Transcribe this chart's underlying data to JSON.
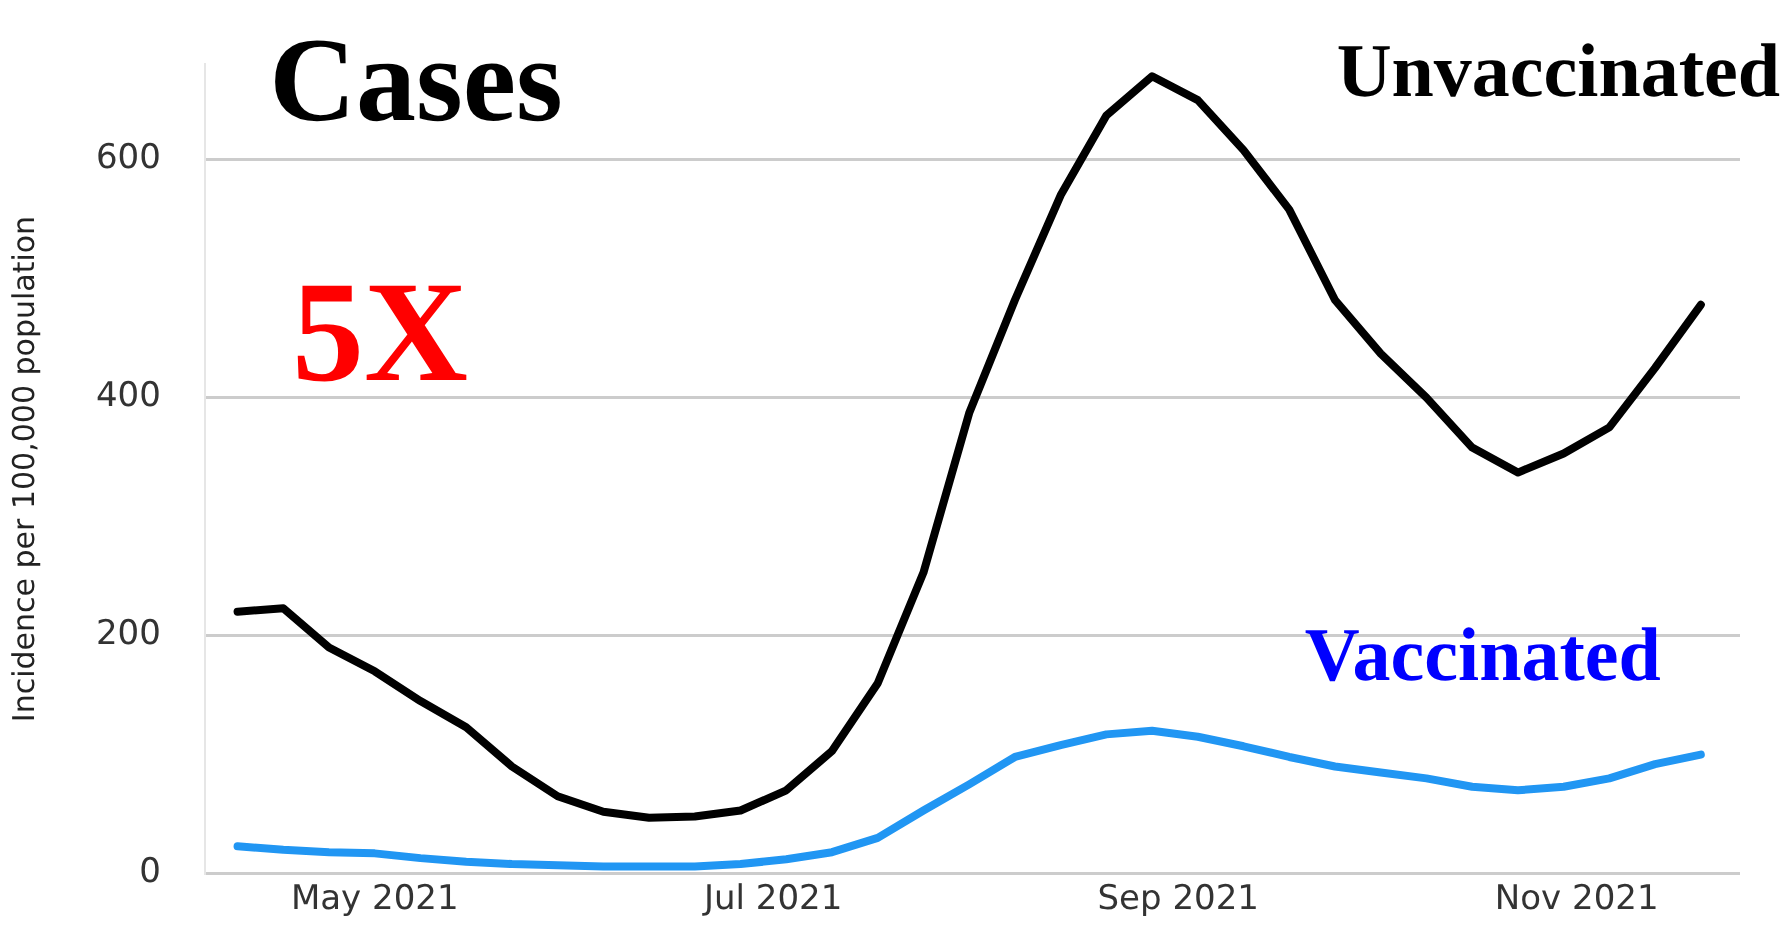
{
  "chart_data": {
    "type": "line",
    "title": "Cases",
    "ylabel": "Incidence per 100,000 population",
    "x": [
      "2021-04-10",
      "2021-04-17",
      "2021-04-24",
      "2021-05-01",
      "2021-05-08",
      "2021-05-15",
      "2021-05-22",
      "2021-05-29",
      "2021-06-05",
      "2021-06-12",
      "2021-06-19",
      "2021-06-26",
      "2021-07-03",
      "2021-07-10",
      "2021-07-17",
      "2021-07-24",
      "2021-07-31",
      "2021-08-07",
      "2021-08-14",
      "2021-08-21",
      "2021-08-28",
      "2021-09-04",
      "2021-09-11",
      "2021-09-18",
      "2021-09-25",
      "2021-10-02",
      "2021-10-09",
      "2021-10-16",
      "2021-10-23",
      "2021-10-30",
      "2021-11-06",
      "2021-11-13",
      "2021-11-20"
    ],
    "series": [
      {
        "name": "Unvaccinated",
        "color": "#000000",
        "values": [
          220,
          223,
          190,
          170,
          145,
          123,
          90,
          65,
          52,
          47,
          48,
          53,
          70,
          103,
          160,
          253,
          387,
          482,
          570,
          637,
          670,
          650,
          608,
          558,
          482,
          437,
          400,
          358,
          337,
          353,
          375,
          425,
          478
        ]
      },
      {
        "name": "Vaccinated",
        "color": "#2196f3",
        "values": [
          23,
          20,
          18,
          17,
          13,
          10,
          8,
          7,
          6,
          6,
          6,
          8,
          12,
          18,
          30,
          53,
          75,
          98,
          108,
          117,
          120,
          115,
          107,
          98,
          90,
          85,
          80,
          73,
          70,
          73,
          80,
          92,
          100
        ]
      }
    ],
    "annotations": [
      "5X"
    ],
    "xlim": [
      "2021-04-05",
      "2021-11-26"
    ],
    "xticks": [
      {
        "value": "2021-05-01",
        "label": "May 2021"
      },
      {
        "value": "2021-07-01",
        "label": "Jul 2021"
      },
      {
        "value": "2021-09-01",
        "label": "Sep 2021"
      },
      {
        "value": "2021-11-01",
        "label": "Nov 2021"
      }
    ],
    "ylim": [
      0,
      680
    ],
    "yticks": [
      0,
      200,
      400,
      600
    ],
    "grid": "y",
    "legend": false,
    "marker": "none",
    "line_style": "solid"
  }
}
